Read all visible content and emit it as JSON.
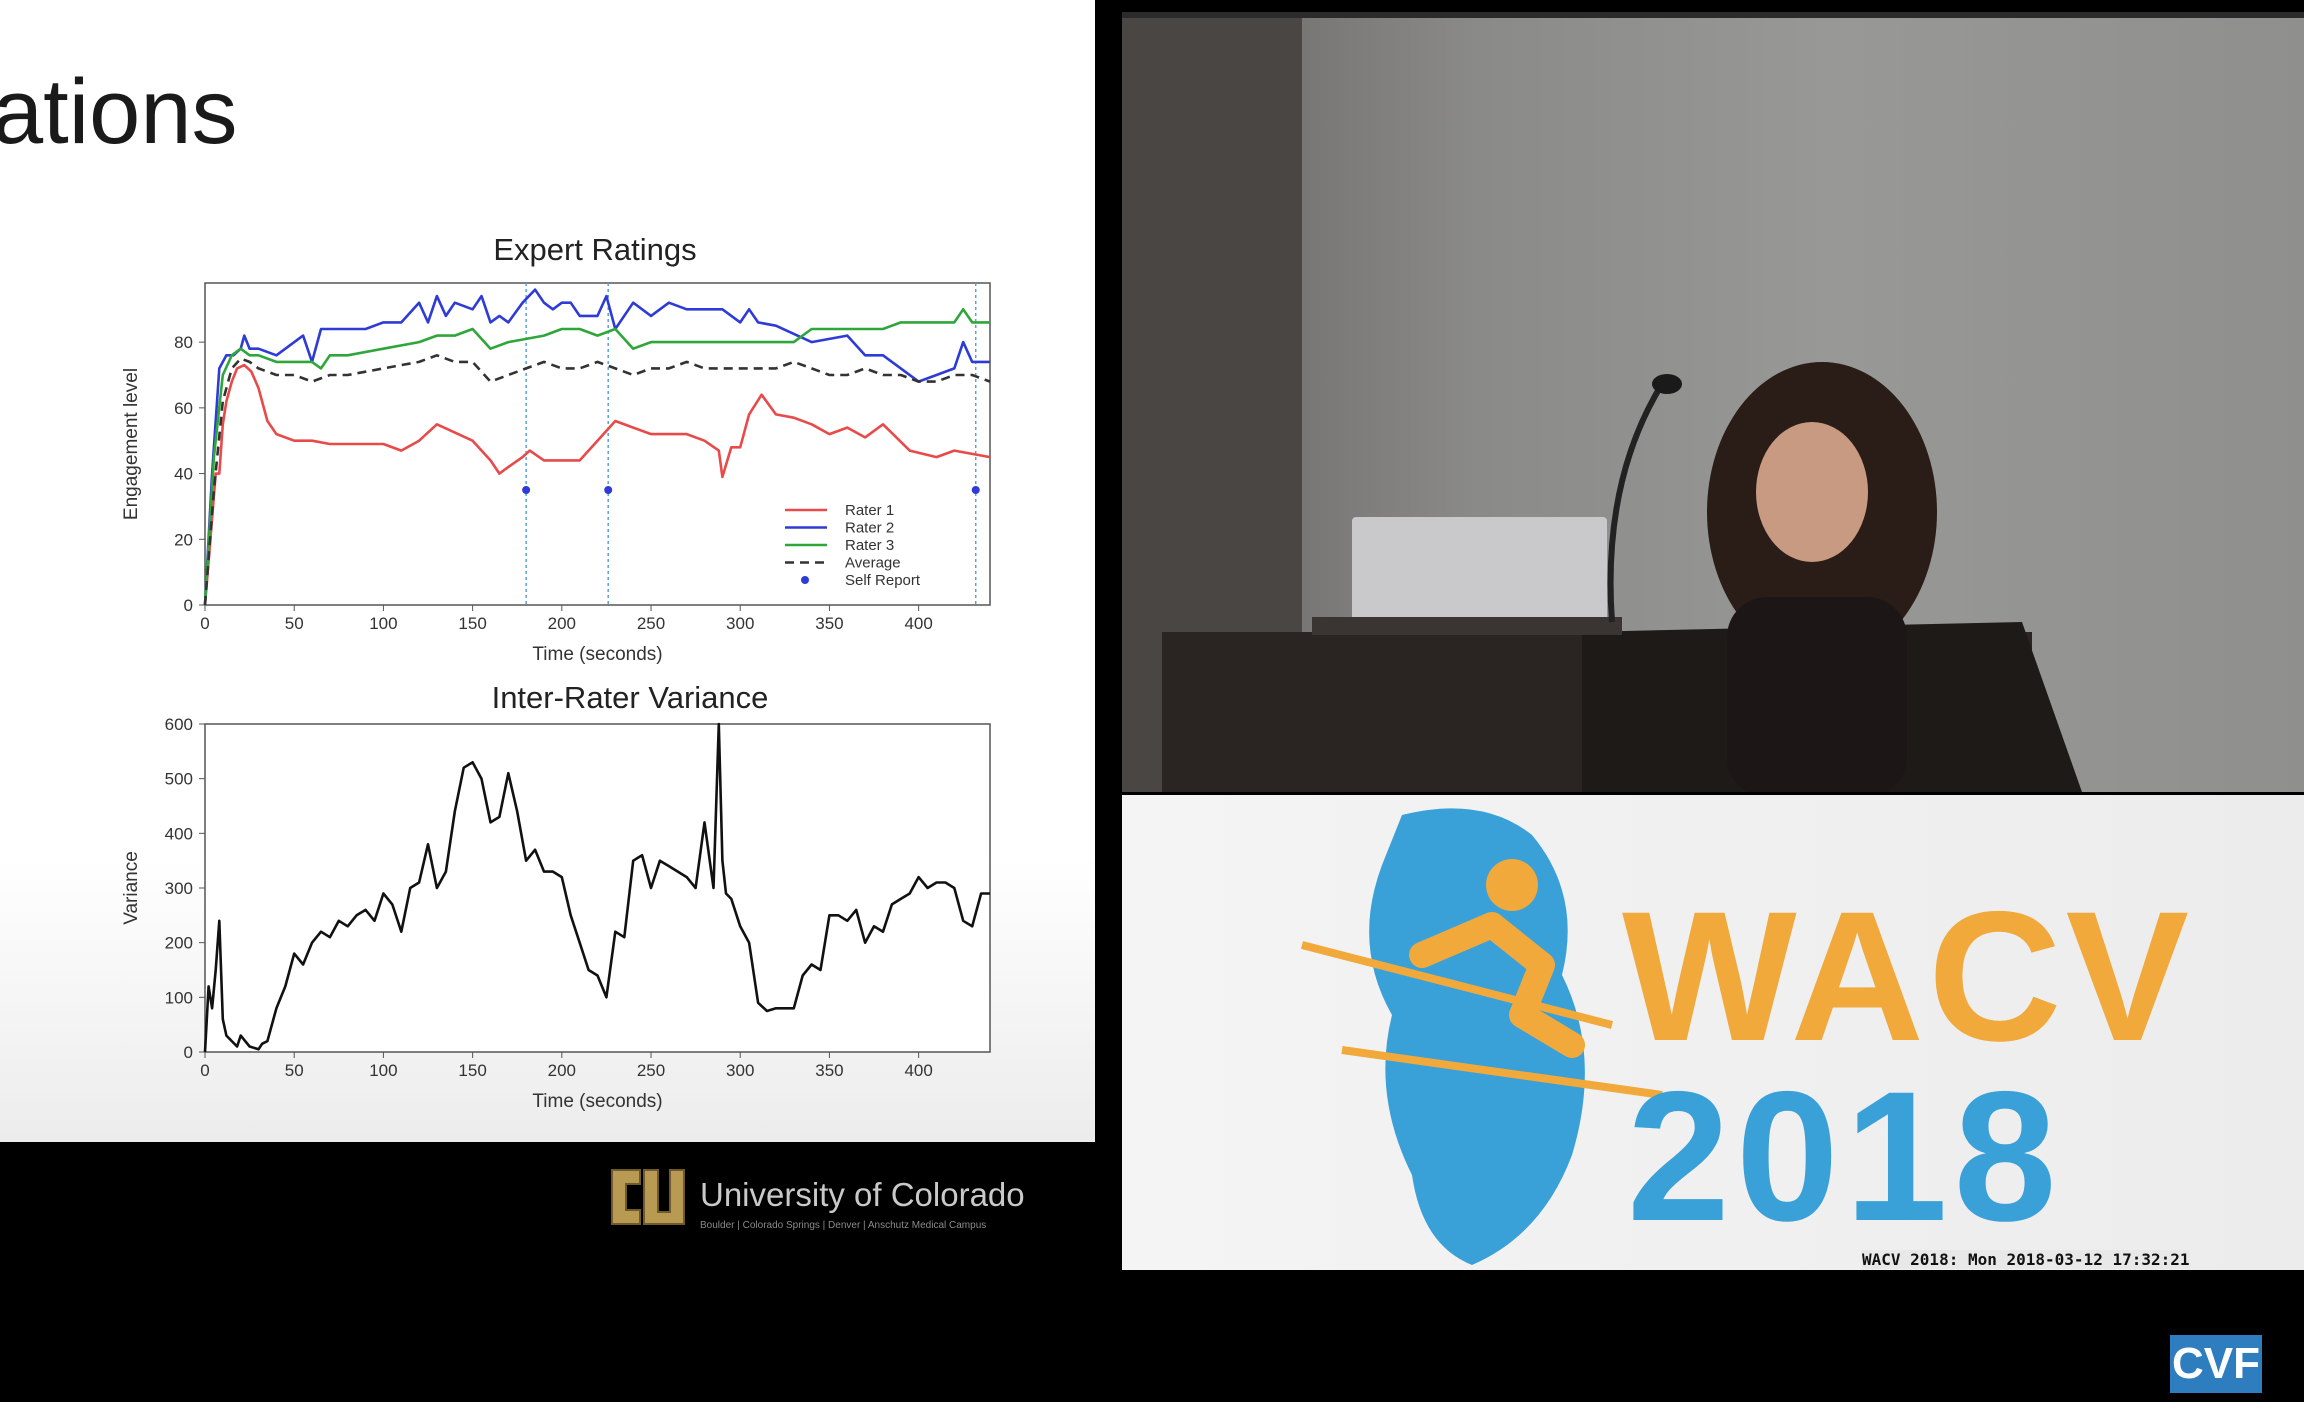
{
  "slide": {
    "title": "ations",
    "footer_institution": "University of Colorado",
    "footer_campuses": "Boulder | Colorado Springs | Denver | Anschutz Medical Campus"
  },
  "video": {
    "event_logo_text": "WACV",
    "event_logo_year": "2018",
    "timestamp": "WACV 2018: Mon 2018-03-12 17:32:21",
    "badge": "CVF"
  },
  "chart_data": [
    {
      "type": "line",
      "title": "Expert Ratings",
      "xlabel": "Time (seconds)",
      "ylabel": "Engagement level",
      "xlim": [
        0,
        440
      ],
      "ylim": [
        0,
        98
      ],
      "xticks": [
        "0",
        "50",
        "100",
        "150",
        "200",
        "250",
        "300",
        "350",
        "400"
      ],
      "yticks": [
        "0",
        "20",
        "40",
        "60",
        "80"
      ],
      "legend_position": "bottom-right",
      "series": [
        {
          "name": "Rater 1",
          "color": "#e84a4a",
          "style": "solid",
          "x": [
            0,
            3,
            6,
            8,
            10,
            12,
            15,
            18,
            22,
            26,
            30,
            35,
            40,
            50,
            60,
            70,
            80,
            100,
            110,
            120,
            130,
            150,
            160,
            165,
            170,
            178,
            182,
            190,
            200,
            210,
            220,
            230,
            240,
            250,
            260,
            270,
            280,
            288,
            290,
            295,
            300,
            305,
            312,
            320,
            330,
            340,
            350,
            360,
            370,
            380,
            395,
            410,
            420,
            430,
            440
          ],
          "y": [
            0,
            20,
            40,
            40,
            55,
            62,
            68,
            72,
            73,
            71,
            66,
            56,
            52,
            50,
            50,
            49,
            49,
            49,
            47,
            50,
            55,
            50,
            44,
            40,
            42,
            45,
            47,
            44,
            44,
            44,
            50,
            56,
            54,
            52,
            52,
            52,
            50,
            47,
            39,
            48,
            48,
            58,
            64,
            58,
            57,
            55,
            52,
            54,
            51,
            55,
            47,
            45,
            47,
            46,
            45
          ]
        },
        {
          "name": "Rater 2",
          "color": "#2e3bd6",
          "style": "solid",
          "x": [
            0,
            4,
            8,
            12,
            16,
            20,
            22,
            25,
            30,
            40,
            55,
            60,
            65,
            70,
            80,
            90,
            100,
            110,
            120,
            125,
            130,
            135,
            140,
            150,
            155,
            160,
            165,
            170,
            178,
            185,
            190,
            195,
            200,
            205,
            210,
            220,
            225,
            230,
            240,
            250,
            260,
            270,
            280,
            290,
            300,
            305,
            310,
            320,
            340,
            360,
            370,
            380,
            390,
            400,
            410,
            420,
            425,
            430,
            440
          ],
          "y": [
            0,
            40,
            72,
            76,
            76,
            78,
            82,
            78,
            78,
            76,
            82,
            74,
            84,
            84,
            84,
            84,
            86,
            86,
            92,
            86,
            94,
            88,
            92,
            90,
            94,
            86,
            88,
            86,
            92,
            96,
            92,
            90,
            92,
            92,
            88,
            88,
            94,
            84,
            92,
            88,
            92,
            90,
            90,
            90,
            86,
            90,
            86,
            85,
            80,
            82,
            76,
            76,
            72,
            68,
            70,
            72,
            80,
            74,
            74
          ]
        },
        {
          "name": "Rater 3",
          "color": "#2fa63a",
          "style": "solid",
          "x": [
            0,
            5,
            10,
            15,
            20,
            25,
            30,
            40,
            50,
            60,
            65,
            70,
            80,
            100,
            120,
            130,
            140,
            150,
            160,
            170,
            190,
            200,
            210,
            220,
            230,
            240,
            250,
            260,
            280,
            290,
            300,
            310,
            320,
            330,
            340,
            350,
            360,
            380,
            390,
            400,
            410,
            420,
            425,
            430,
            440
          ],
          "y": [
            0,
            45,
            70,
            76,
            78,
            76,
            76,
            74,
            74,
            74,
            72,
            76,
            76,
            78,
            80,
            82,
            82,
            84,
            78,
            80,
            82,
            84,
            84,
            82,
            84,
            78,
            80,
            80,
            80,
            80,
            80,
            80,
            80,
            80,
            84,
            84,
            84,
            84,
            86,
            86,
            86,
            86,
            90,
            86,
            86
          ]
        },
        {
          "name": "Average",
          "color": "#333333",
          "style": "dashed",
          "x": [
            0,
            5,
            10,
            15,
            20,
            25,
            30,
            40,
            50,
            60,
            70,
            80,
            90,
            100,
            110,
            120,
            130,
            140,
            150,
            160,
            170,
            180,
            190,
            200,
            210,
            220,
            230,
            240,
            250,
            260,
            270,
            280,
            290,
            300,
            310,
            320,
            330,
            340,
            350,
            360,
            370,
            380,
            390,
            400,
            410,
            420,
            430,
            440
          ],
          "y": [
            0,
            35,
            62,
            72,
            75,
            74,
            72,
            70,
            70,
            68,
            70,
            70,
            71,
            72,
            73,
            74,
            76,
            74,
            74,
            68,
            70,
            72,
            74,
            72,
            72,
            74,
            72,
            70,
            72,
            72,
            74,
            72,
            72,
            72,
            72,
            72,
            74,
            72,
            70,
            70,
            72,
            70,
            70,
            68,
            68,
            70,
            70,
            68
          ]
        },
        {
          "name": "Self Report",
          "color": "#2e3bd6",
          "style": "marker",
          "x": [
            180,
            226,
            432
          ],
          "y": [
            35,
            35,
            35
          ]
        }
      ],
      "vlines": [
        180,
        226,
        432
      ]
    },
    {
      "type": "line",
      "title": "Inter-Rater Variance",
      "xlabel": "Time (seconds)",
      "ylabel": "Variance",
      "xlim": [
        0,
        440
      ],
      "ylim": [
        0,
        600
      ],
      "xticks": [
        "0",
        "50",
        "100",
        "150",
        "200",
        "250",
        "300",
        "350",
        "400"
      ],
      "yticks": [
        "0",
        "100",
        "200",
        "300",
        "400",
        "500",
        "600"
      ],
      "series": [
        {
          "name": "",
          "color": "#111111",
          "style": "solid",
          "x": [
            0,
            2,
            4,
            6,
            8,
            10,
            12,
            15,
            18,
            20,
            25,
            30,
            32,
            35,
            40,
            45,
            50,
            55,
            60,
            65,
            70,
            75,
            80,
            85,
            90,
            95,
            100,
            105,
            110,
            115,
            120,
            125,
            130,
            135,
            140,
            145,
            150,
            155,
            160,
            165,
            170,
            175,
            180,
            185,
            190,
            195,
            200,
            205,
            210,
            215,
            220,
            225,
            230,
            235,
            240,
            245,
            250,
            255,
            260,
            265,
            270,
            275,
            280,
            285,
            288,
            290,
            292,
            295,
            300,
            305,
            310,
            315,
            320,
            325,
            330,
            335,
            340,
            345,
            350,
            355,
            360,
            365,
            370,
            375,
            380,
            385,
            390,
            395,
            400,
            405,
            410,
            415,
            420,
            425,
            430,
            435,
            440
          ],
          "y": [
            0,
            120,
            80,
            150,
            240,
            60,
            30,
            20,
            10,
            30,
            10,
            5,
            15,
            20,
            80,
            120,
            180,
            160,
            200,
            220,
            210,
            240,
            230,
            250,
            260,
            240,
            290,
            270,
            220,
            300,
            310,
            380,
            300,
            330,
            440,
            520,
            530,
            500,
            420,
            430,
            510,
            440,
            350,
            370,
            330,
            330,
            320,
            250,
            200,
            150,
            140,
            100,
            220,
            210,
            350,
            360,
            300,
            350,
            340,
            330,
            320,
            300,
            420,
            300,
            600,
            350,
            290,
            280,
            230,
            200,
            90,
            75,
            80,
            80,
            80,
            140,
            160,
            150,
            250,
            250,
            240,
            260,
            200,
            230,
            220,
            270,
            280,
            290,
            320,
            300,
            310,
            310,
            300,
            240,
            230,
            290,
            290
          ]
        }
      ]
    }
  ]
}
